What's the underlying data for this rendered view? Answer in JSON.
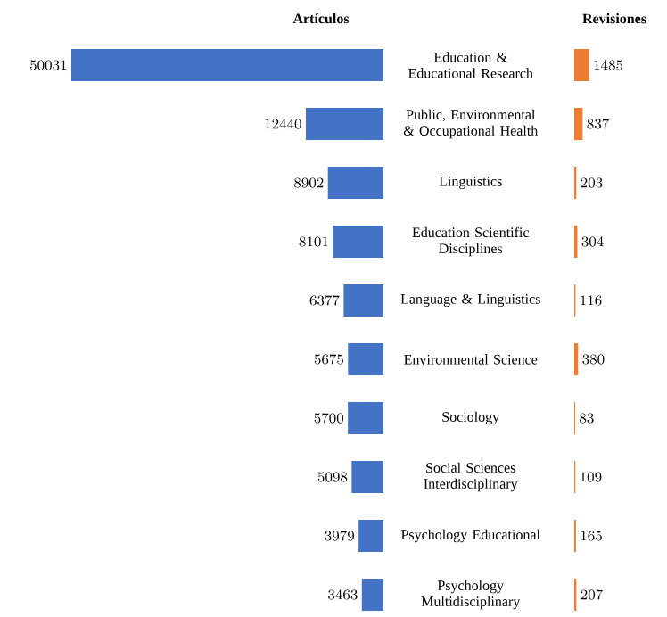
{
  "chart_data": [
    {
      "type": "bar",
      "orientation": "horizontal",
      "title": "Artículos",
      "categories": [
        "Education & Educational Research",
        "Public, Environmental & Occupational Health",
        "Linguistics",
        "Education Scientific Disciplines",
        "Language & Linguistics",
        "Environmental Science",
        "Sociology",
        "Social Sciences Interdisciplinary",
        "Psychology Educational",
        "Psychology Multidisciplinary"
      ],
      "values": [
        50031,
        12440,
        8902,
        8101,
        6377,
        5675,
        5700,
        5098,
        3979,
        3463
      ],
      "color": "#4472c4",
      "data_labels": true
    },
    {
      "type": "bar",
      "orientation": "horizontal",
      "title": "Revisiones",
      "categories": [
        null,
        null,
        null,
        null,
        null,
        null,
        null,
        null,
        null,
        null
      ],
      "values": [
        1485,
        837,
        203,
        304,
        116,
        380,
        83,
        109,
        165,
        207
      ],
      "color": "#ed7d31",
      "data_labels": true,
      "tick_labels": false
    }
  ]
}
